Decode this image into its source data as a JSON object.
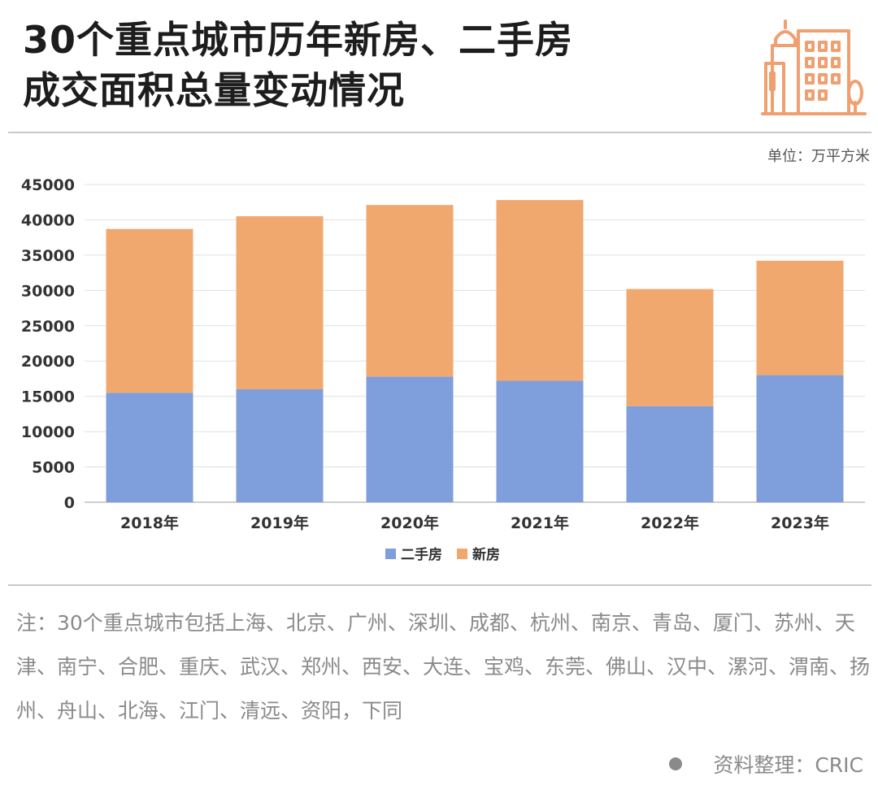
{
  "title": {
    "line1": "30个重点城市历年新房、二手房",
    "line2": "成交面积总量变动情况"
  },
  "logo_icon": "city-buildings-icon",
  "unit": "单位：万平方米",
  "colors": {
    "second_hand": "#7f9edc",
    "new_house": "#f0a86e",
    "grid": "#e0e0e0",
    "logo": "#f0a070"
  },
  "chart_data": {
    "type": "bar",
    "stacked": true,
    "categories": [
      "2018年",
      "2019年",
      "2020年",
      "2021年",
      "2022年",
      "2023年"
    ],
    "series": [
      {
        "name": "二手房",
        "values": [
          15500,
          16000,
          17800,
          17200,
          13600,
          18000
        ]
      },
      {
        "name": "新房",
        "values": [
          23200,
          24500,
          24300,
          25600,
          16600,
          16200
        ]
      }
    ],
    "ylim": [
      0,
      45000
    ],
    "yticks": [
      0,
      5000,
      10000,
      15000,
      20000,
      25000,
      30000,
      35000,
      40000,
      45000
    ],
    "grid": true,
    "legend_position": "bottom-center"
  },
  "note": "注：30个重点城市包括上海、北京、广州、深圳、成都、杭州、南京、青岛、厦门、苏州、天津、南宁、合肥、重庆、武汉、郑州、西安、大连、宝鸡、东莞、佛山、汉中、漯河、渭南、扬州、舟山、北海、江门、清远、资阳，下同",
  "source": "资料整理：CRIC"
}
